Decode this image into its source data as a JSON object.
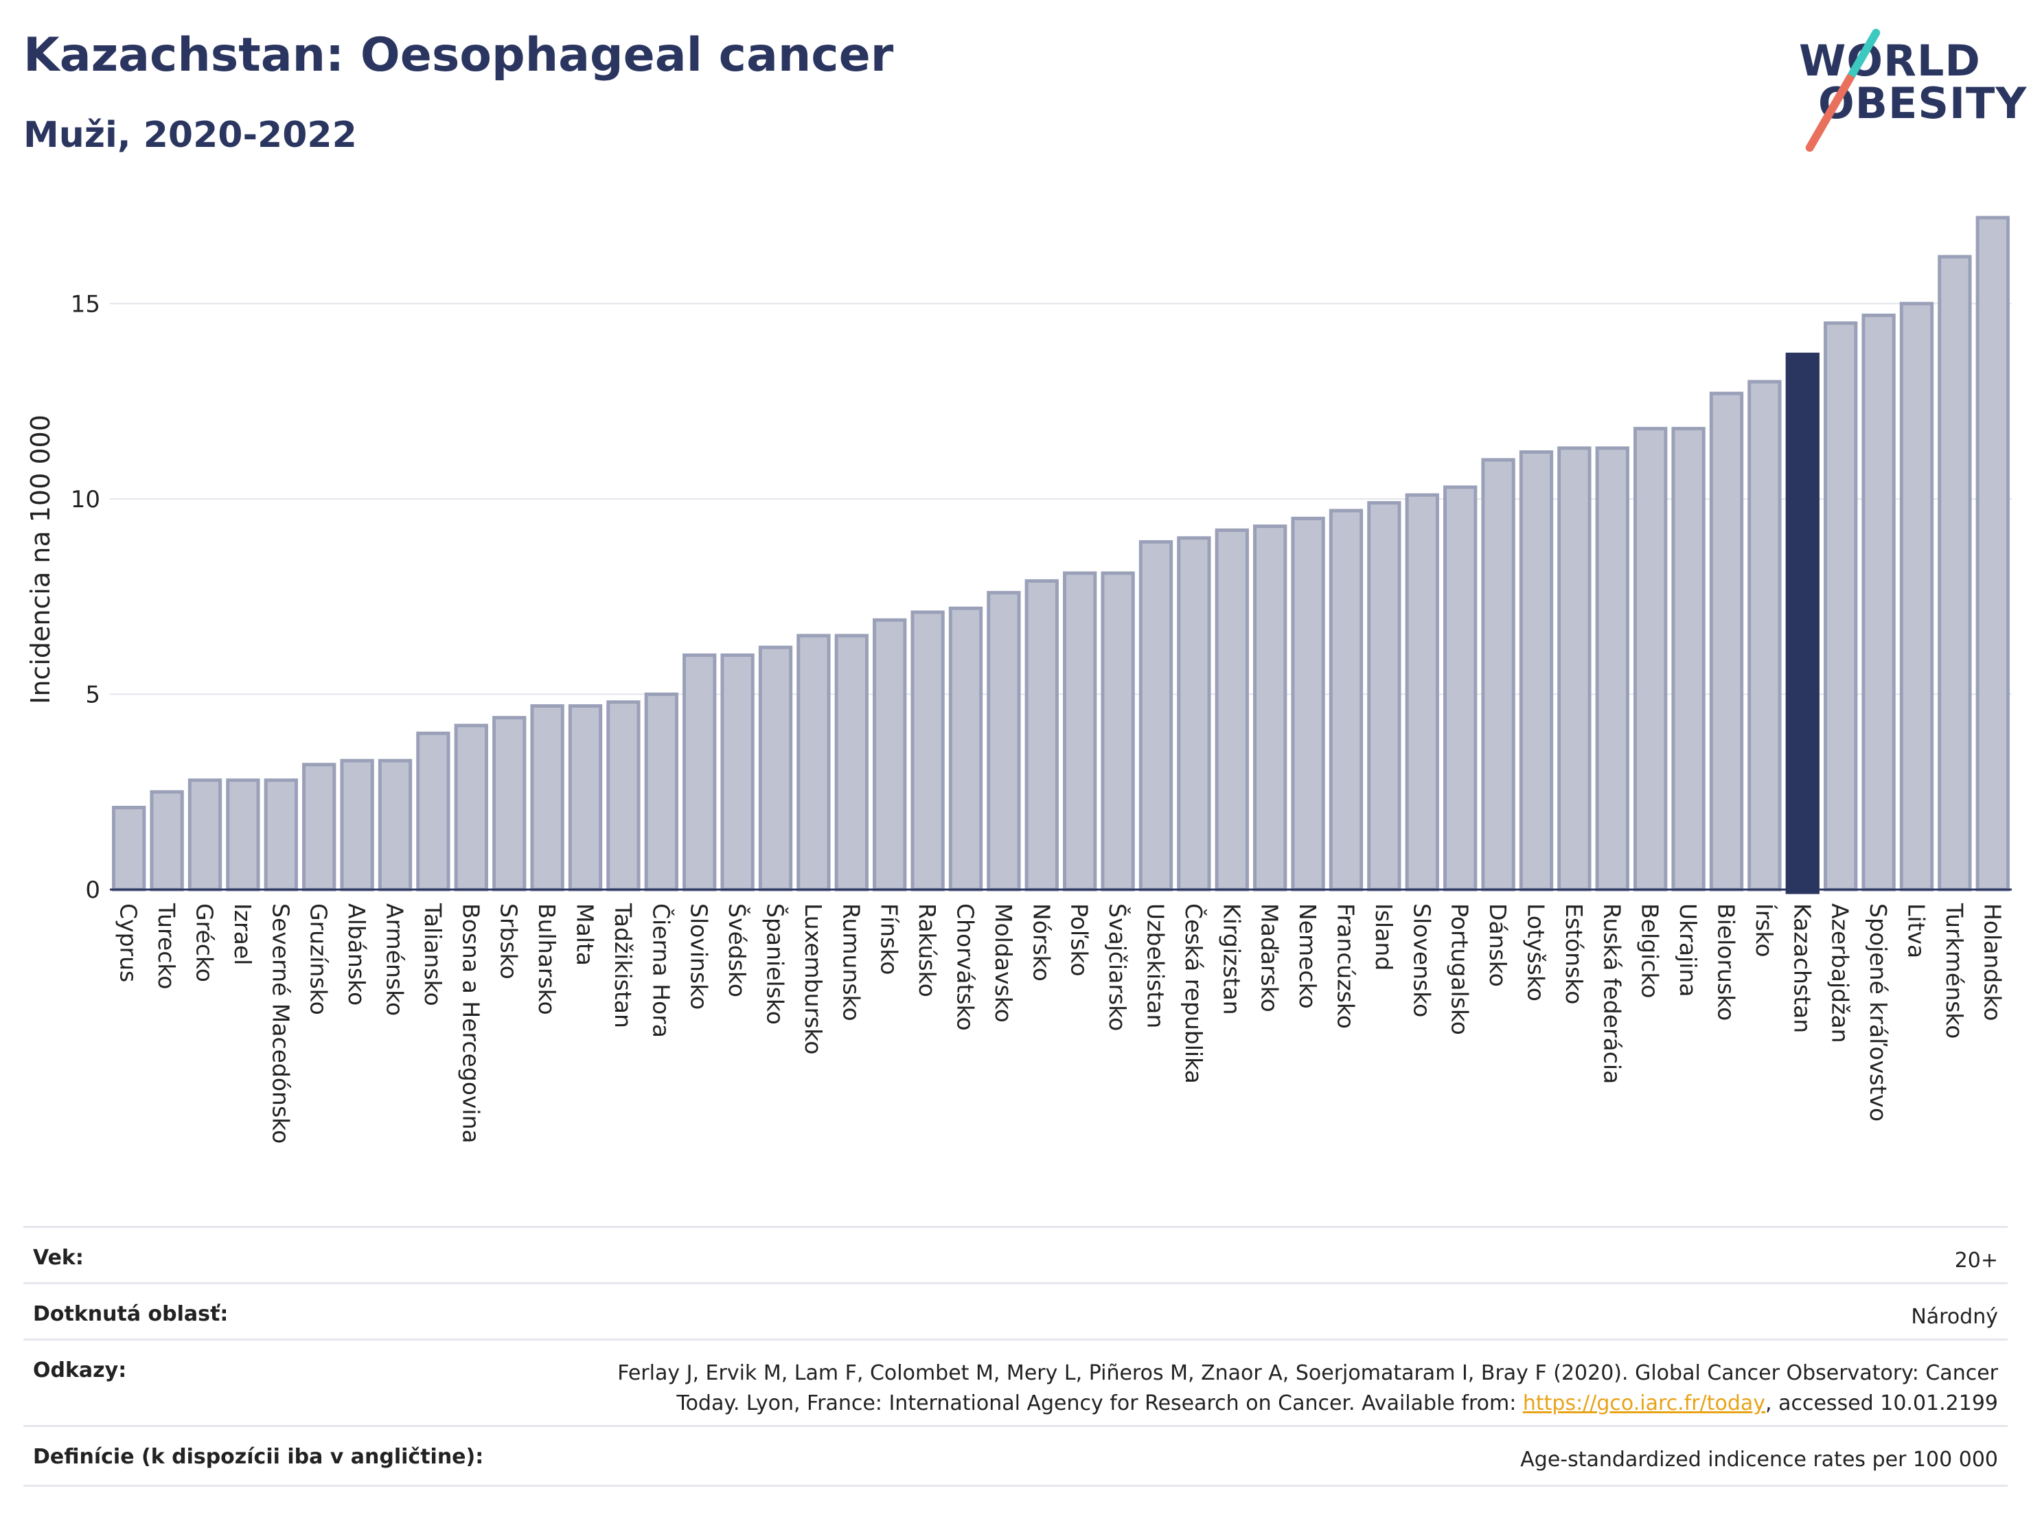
{
  "title": "Kazachstan: Oesophageal cancer",
  "subtitle": "Muži, 2020-2022",
  "logo": {
    "line1": "WORLD",
    "line2": "OBESITY"
  },
  "colors": {
    "bar": "#bfc3d1",
    "bar_stroke": "#9aa0b8",
    "highlight": "#2b3660",
    "grid": "#e3e5ec",
    "axis": "#2b3660"
  },
  "chart_data": {
    "type": "bar",
    "ylabel": "Incidencia na 100 000",
    "ylim": [
      0,
      17.5
    ],
    "yticks": [
      0,
      5,
      10,
      15
    ],
    "highlight": "Kazachstan",
    "categories": [
      "Cyprus",
      "Turecko",
      "Grécko",
      "Izrael",
      "Severné Macedónsko",
      "Gruzínsko",
      "Albánsko",
      "Arménsko",
      "Taliansko",
      "Bosna a Hercegovina",
      "Srbsko",
      "Bulharsko",
      "Malta",
      "Tadžikistan",
      "Čierna Hora",
      "Slovinsko",
      "Švédsko",
      "Španielsko",
      "Luxembursko",
      "Rumunsko",
      "Fínsko",
      "Rakúsko",
      "Chorvátsko",
      "Moldavsko",
      "Nórsko",
      "Poľsko",
      "Švajčiarsko",
      "Uzbekistan",
      "Česká republika",
      "Kirgizstan",
      "Maďarsko",
      "Nemecko",
      "Francúzsko",
      "Island",
      "Slovensko",
      "Portugalsko",
      "Dánsko",
      "Lotyšsko",
      "Estónsko",
      "Ruská federácia",
      "Belgicko",
      "Ukrajina",
      "Bielorusko",
      "Írsko",
      "Kazachstan",
      "Azerbajdžan",
      "Spojené kráľovstvo",
      "Litva",
      "Turkménsko",
      "Holandsko"
    ],
    "values": [
      2.1,
      2.5,
      2.8,
      2.8,
      2.8,
      3.2,
      3.3,
      3.3,
      4.0,
      4.2,
      4.4,
      4.7,
      4.7,
      4.8,
      5.0,
      6.0,
      6.0,
      6.2,
      6.5,
      6.5,
      6.9,
      7.1,
      7.2,
      7.6,
      7.9,
      8.1,
      8.1,
      8.9,
      9.0,
      9.2,
      9.3,
      9.5,
      9.7,
      9.9,
      10.1,
      10.3,
      11.0,
      11.2,
      11.3,
      11.3,
      11.8,
      11.8,
      12.7,
      13.0,
      13.7,
      14.5,
      14.7,
      15.0,
      16.2,
      17.2
    ]
  },
  "info": {
    "age_label": "Vek:",
    "age_value": "20+",
    "area_label": "Dotknutá oblasť:",
    "area_value": "Národný",
    "ref_label": "Odkazy:",
    "ref_line1": "Ferlay J, Ervik M, Lam F, Colombet M, Mery L, Piñeros M, Znaor A, Soerjomataram I, Bray F (2020). Global Cancer Observatory: Cancer",
    "ref_line2_pre": "Today. Lyon, France: International Agency for Research on Cancer. Available from: ",
    "ref_link": "https://gco.iarc.fr/today",
    "ref_line2_post": ", accessed 10.01.2199",
    "def_label": "Definície (k dispozícii iba v angličtine):",
    "def_value": "Age-standardized indicence rates per 100 000"
  }
}
